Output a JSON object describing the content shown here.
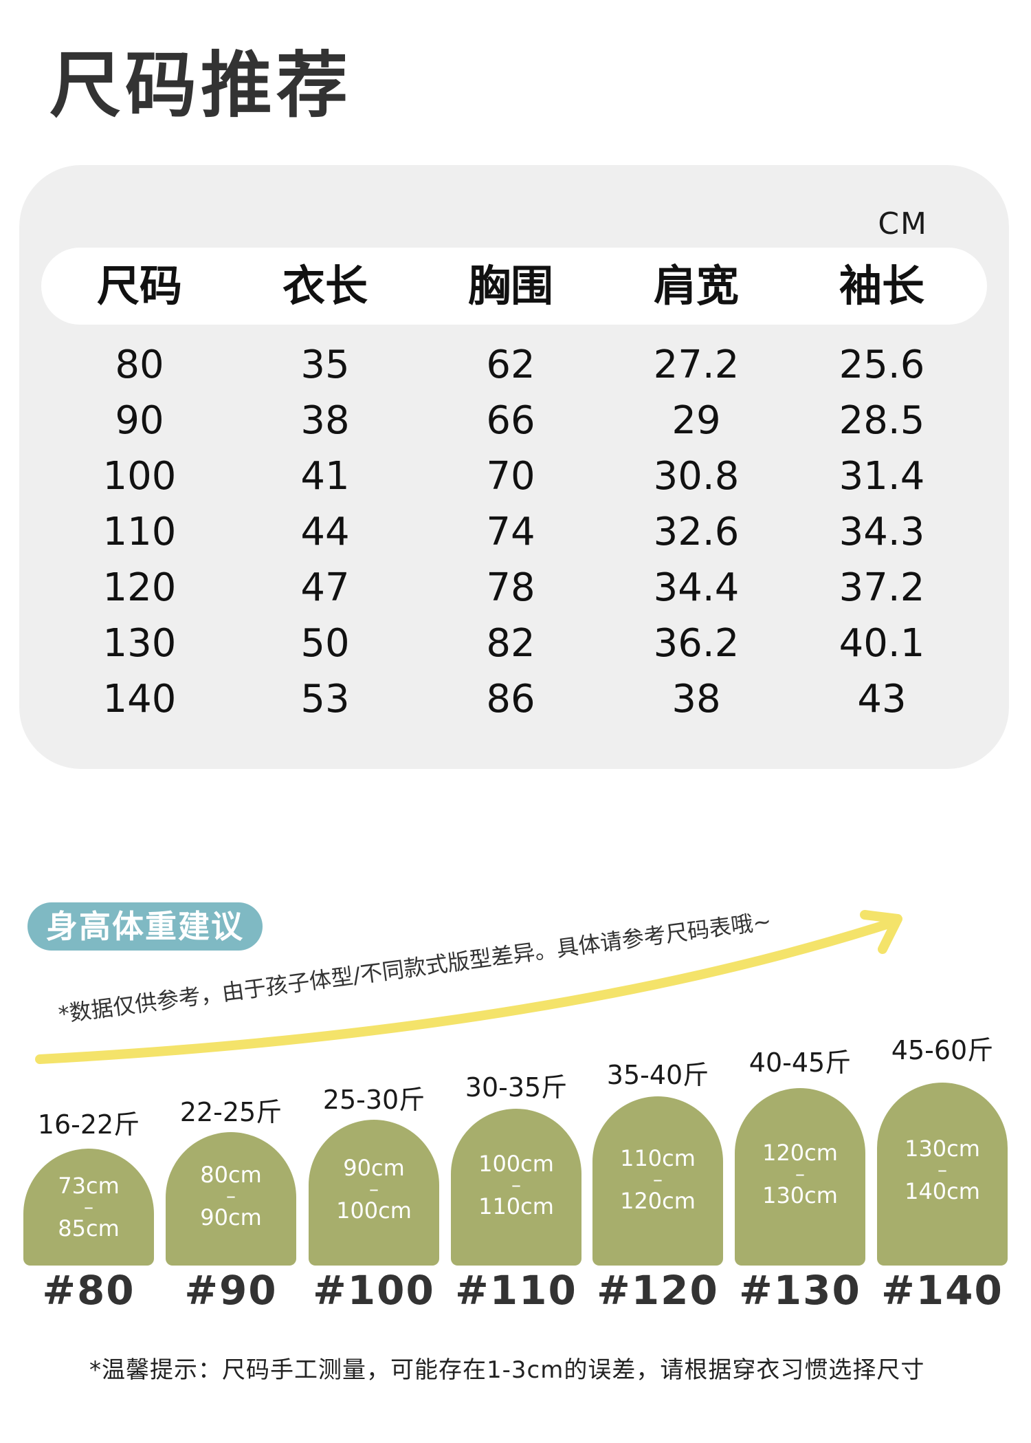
{
  "title": "尺码推荐",
  "table": {
    "unit": "CM",
    "headers": [
      "尺码",
      "衣长",
      "胸围",
      "肩宽",
      "袖长"
    ],
    "rows": [
      [
        "80",
        "35",
        "62",
        "27.2",
        "25.6"
      ],
      [
        "90",
        "38",
        "66",
        "29",
        "28.5"
      ],
      [
        "100",
        "41",
        "70",
        "30.8",
        "31.4"
      ],
      [
        "110",
        "44",
        "74",
        "32.6",
        "34.3"
      ],
      [
        "120",
        "47",
        "78",
        "34.4",
        "37.2"
      ],
      [
        "130",
        "50",
        "82",
        "36.2",
        "40.1"
      ],
      [
        "140",
        "53",
        "86",
        "38",
        "43"
      ]
    ]
  },
  "recommend": {
    "pill_label": "身高体重建议",
    "note": "*数据仅供参考，由于孩子体型/不同款式版型差异。具体请参考尺码表哦~",
    "sizes": [
      {
        "weight": "16-22斤",
        "height_from": "73cm",
        "height_to": "85cm",
        "size": "#80"
      },
      {
        "weight": "22-25斤",
        "height_from": "80cm",
        "height_to": "90cm",
        "size": "#90"
      },
      {
        "weight": "25-30斤",
        "height_from": "90cm",
        "height_to": "100cm",
        "size": "#100"
      },
      {
        "weight": "30-35斤",
        "height_from": "100cm",
        "height_to": "110cm",
        "size": "#110"
      },
      {
        "weight": "35-40斤",
        "height_from": "110cm",
        "height_to": "120cm",
        "size": "#120"
      },
      {
        "weight": "40-45斤",
        "height_from": "120cm",
        "height_to": "130cm",
        "size": "#130"
      },
      {
        "weight": "45-60斤",
        "height_from": "130cm",
        "height_to": "140cm",
        "size": "#140"
      }
    ],
    "dash": "–"
  },
  "footer_tip": "*温馨提示：尺码手工测量，可能存在1-3cm的误差，请根据穿衣习惯选择尺寸",
  "colors": {
    "card_bg": "#efefef",
    "pill_bg": "#7fb9c3",
    "badge_bg": "#a7ae6c",
    "curve": "#f4e36a"
  }
}
